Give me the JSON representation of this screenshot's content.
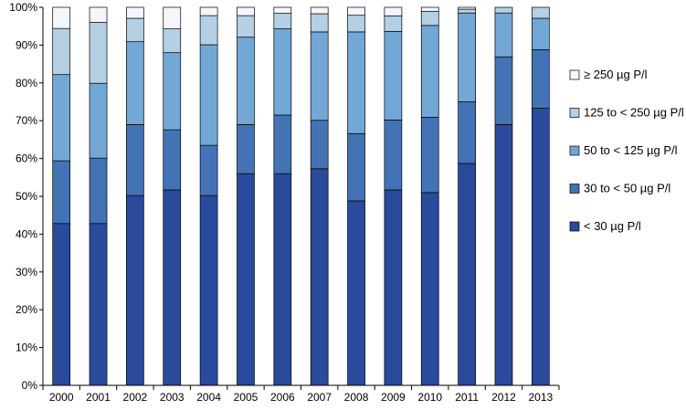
{
  "chart_data": {
    "type": "bar",
    "stacked": true,
    "percent": true,
    "title": "",
    "xlabel": "",
    "ylabel": "",
    "ylim": [
      0,
      100
    ],
    "y_ticks": [
      "0%",
      "10%",
      "20%",
      "30%",
      "40%",
      "50%",
      "60%",
      "70%",
      "80%",
      "90%",
      "100%"
    ],
    "grid": false,
    "legend_position": "right",
    "categories": [
      "2000",
      "2001",
      "2002",
      "2003",
      "2004",
      "2005",
      "2006",
      "2007",
      "2008",
      "2009",
      "2010",
      "2011",
      "2012",
      "2013"
    ],
    "series": [
      {
        "name": "< 30 µg P/l",
        "color": "#2a4a9b",
        "values": [
          42.8,
          42.8,
          50.2,
          51.7,
          50.2,
          56.0,
          56.0,
          57.3,
          48.8,
          51.7,
          51.0,
          58.7,
          69.0,
          73.3
        ]
      },
      {
        "name": "30 to < 50  µg P/l",
        "color": "#4373b5",
        "values": [
          16.6,
          17.3,
          18.8,
          15.9,
          13.3,
          13.0,
          15.5,
          12.8,
          17.8,
          18.5,
          19.9,
          16.3,
          17.9,
          15.5
        ]
      },
      {
        "name": "50 to < 125  µg P/l",
        "color": "#73a8d6",
        "values": [
          22.8,
          19.8,
          21.9,
          20.4,
          26.6,
          23.1,
          22.8,
          23.4,
          26.9,
          23.4,
          24.3,
          23.5,
          11.6,
          8.3
        ]
      },
      {
        "name": "125 to < 250 µg P/l",
        "color": "#b5cfe4",
        "values": [
          12.2,
          16.1,
          6.2,
          6.3,
          7.7,
          5.7,
          4.1,
          4.8,
          4.4,
          4.1,
          3.7,
          1.0,
          1.5,
          2.9
        ]
      },
      {
        "name": "≥ 250  µg P/l",
        "color": "#f4f6fc",
        "values": [
          5.6,
          4.0,
          2.9,
          5.7,
          2.2,
          2.2,
          1.6,
          1.7,
          2.1,
          2.3,
          1.1,
          0.5,
          0.0,
          0.0
        ]
      }
    ]
  }
}
